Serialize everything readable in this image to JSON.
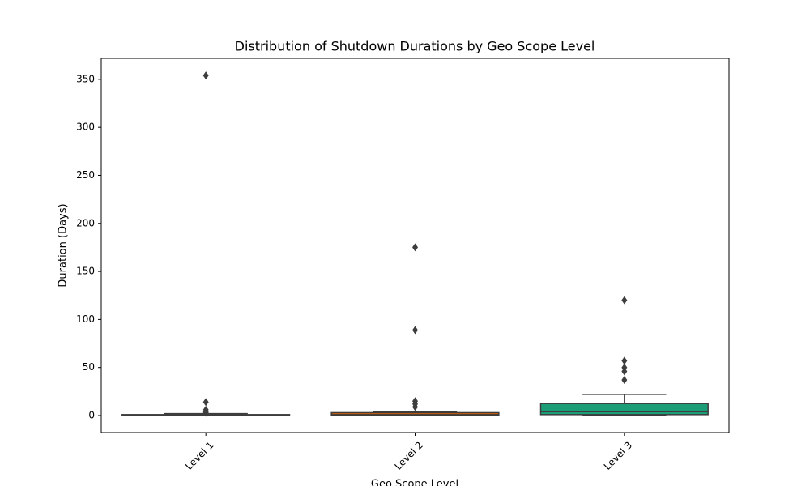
{
  "chart_data": {
    "type": "box",
    "title": "Distribution of Shutdown Durations by Geo Scope Level",
    "x_label": "Geo Scope Level",
    "y_label": "Duration (Days)",
    "categories": [
      "Level 1",
      "Level 2",
      "Level 3"
    ],
    "boxes": [
      {
        "color": "#7570b3",
        "min": 0,
        "q1": 0,
        "median": 0.5,
        "q3": 1,
        "max": 2,
        "outliers": [
          354,
          14,
          6,
          4,
          3
        ]
      },
      {
        "color": "#d95f02",
        "min": 0,
        "q1": 0,
        "median": 1,
        "q3": 3,
        "max": 4,
        "outliers": [
          175,
          89,
          15,
          12,
          9
        ]
      },
      {
        "color": "#1b9e77",
        "min": 0,
        "q1": 1,
        "median": 4,
        "q3": 12.5,
        "max": 22,
        "outliers": [
          120,
          57,
          50,
          46,
          37
        ]
      }
    ],
    "ylim": [
      -17.7,
      371.8
    ],
    "yticks": [
      0,
      50,
      100,
      150,
      200,
      250,
      300,
      350
    ]
  }
}
